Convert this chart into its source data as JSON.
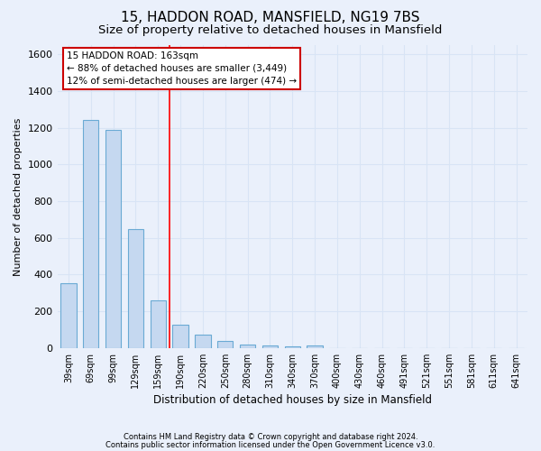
{
  "title": "15, HADDON ROAD, MANSFIELD, NG19 7BS",
  "subtitle": "Size of property relative to detached houses in Mansfield",
  "xlabel": "Distribution of detached houses by size in Mansfield",
  "ylabel": "Number of detached properties",
  "footnote1": "Contains HM Land Registry data © Crown copyright and database right 2024.",
  "footnote2": "Contains public sector information licensed under the Open Government Licence v3.0.",
  "bar_labels": [
    "39sqm",
    "69sqm",
    "99sqm",
    "129sqm",
    "159sqm",
    "190sqm",
    "220sqm",
    "250sqm",
    "280sqm",
    "310sqm",
    "340sqm",
    "370sqm",
    "400sqm",
    "430sqm",
    "460sqm",
    "491sqm",
    "521sqm",
    "551sqm",
    "581sqm",
    "611sqm",
    "641sqm"
  ],
  "bar_values": [
    355,
    1240,
    1190,
    650,
    260,
    125,
    75,
    40,
    20,
    15,
    10,
    15,
    0,
    0,
    0,
    0,
    0,
    0,
    0,
    0,
    0
  ],
  "bar_color": "#c5d8f0",
  "bar_edge_color": "#6aaad4",
  "ylim": [
    0,
    1650
  ],
  "yticks": [
    0,
    200,
    400,
    600,
    800,
    1000,
    1200,
    1400,
    1600
  ],
  "red_line_x": 4.5,
  "annotation_text": "15 HADDON ROAD: 163sqm\n← 88% of detached houses are smaller (3,449)\n12% of semi-detached houses are larger (474) →",
  "annotation_box_color": "#ffffff",
  "annotation_box_edge": "#cc0000",
  "background_color": "#eaf0fb",
  "grid_color": "#d8e4f5",
  "title_fontsize": 11,
  "subtitle_fontsize": 9.5,
  "bar_width": 0.7
}
